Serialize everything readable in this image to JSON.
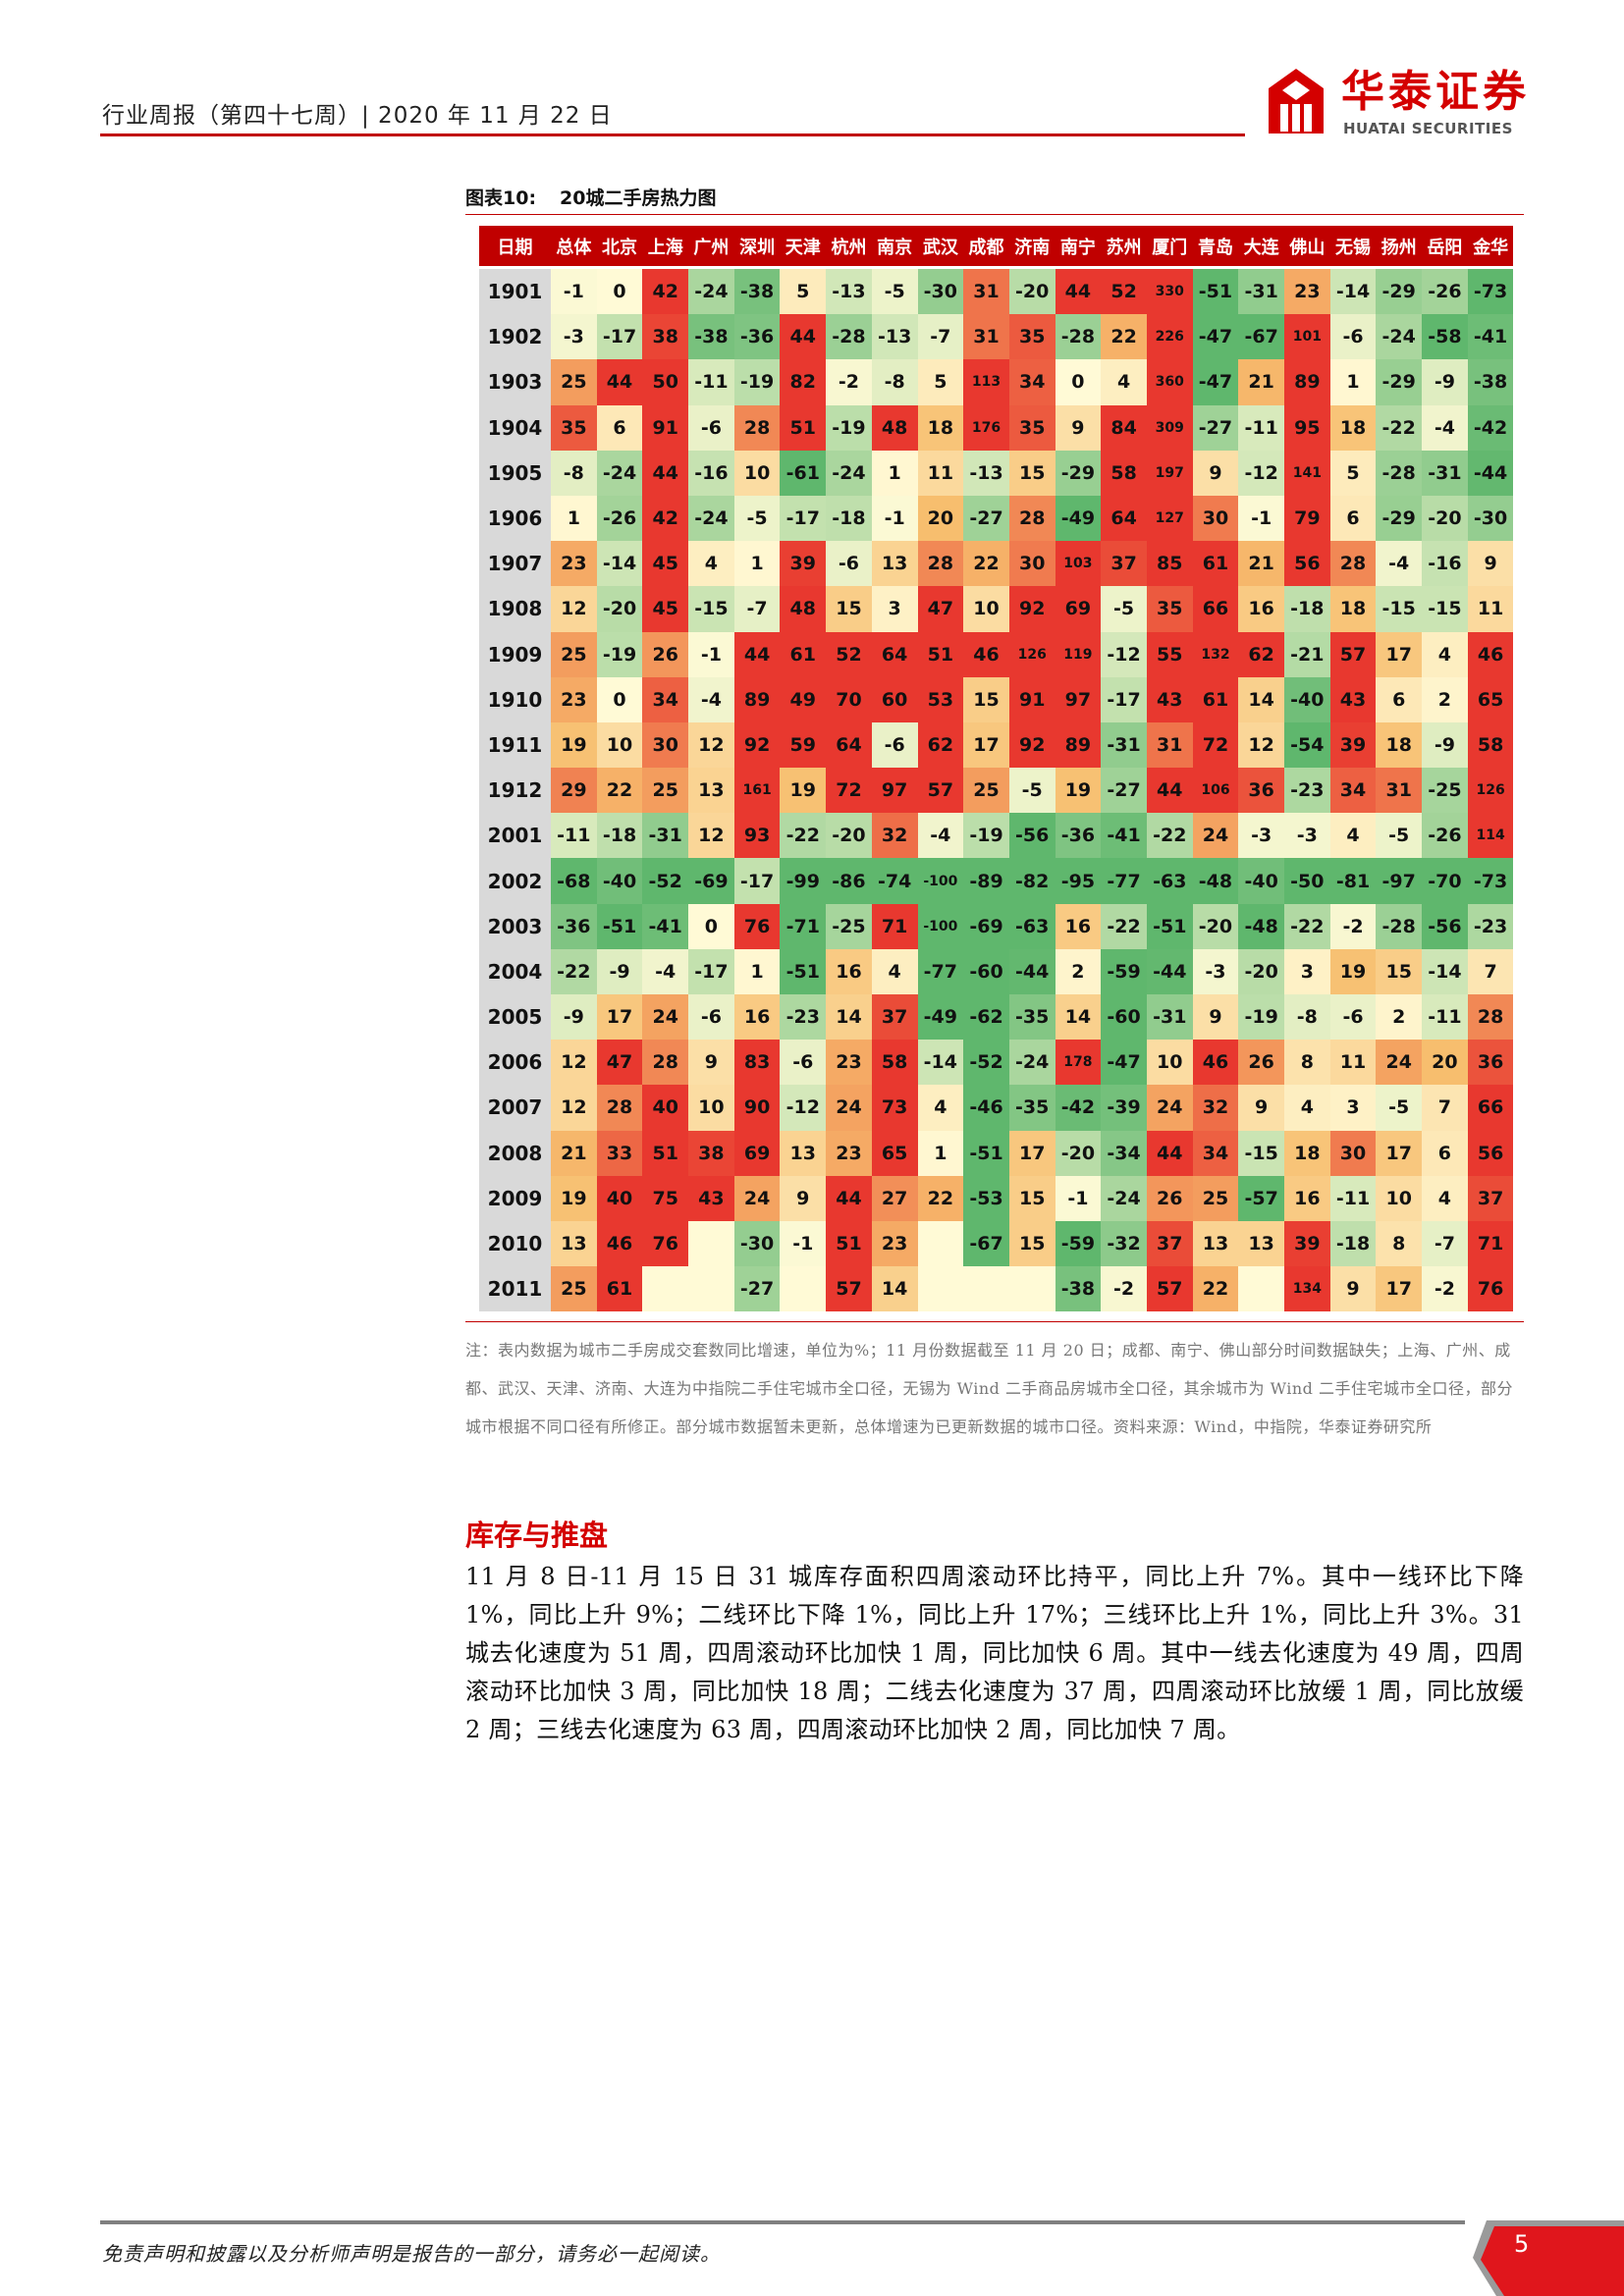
{
  "header": {
    "text": "行业周报（第四十七周）| 2020 年 11 月 22 日"
  },
  "logo": {
    "cn": "华泰证券",
    "en": "HUATAI SECURITIES"
  },
  "figure": {
    "label": "图表10:",
    "title": "20城二手房热力图"
  },
  "chart_data": {
    "type": "heatmap",
    "title": "20城二手房热力图",
    "header_first": "日期",
    "columns": [
      "总体",
      "北京",
      "上海",
      "广州",
      "深圳",
      "天津",
      "杭州",
      "南京",
      "武汉",
      "成都",
      "济南",
      "南宁",
      "苏州",
      "厦门",
      "青岛",
      "大连",
      "佛山",
      "无锡",
      "扬州",
      "岳阳",
      "金华"
    ],
    "rows": [
      "1901",
      "1902",
      "1903",
      "1904",
      "1905",
      "1906",
      "1907",
      "1908",
      "1909",
      "1910",
      "1911",
      "1912",
      "2001",
      "2002",
      "2003",
      "2004",
      "2005",
      "2006",
      "2007",
      "2008",
      "2009",
      "2010",
      "2011"
    ],
    "values": [
      [
        -1,
        0,
        42,
        -24,
        -38,
        5,
        -13,
        -5,
        -30,
        31,
        -20,
        44,
        52,
        330,
        -51,
        -31,
        23,
        -14,
        -29,
        -26,
        -73
      ],
      [
        -3,
        -17,
        38,
        -38,
        -36,
        44,
        -28,
        -13,
        -7,
        31,
        35,
        -28,
        22,
        226,
        -47,
        -67,
        101,
        -6,
        -24,
        -58,
        -41
      ],
      [
        25,
        44,
        50,
        -11,
        -19,
        82,
        -2,
        -8,
        5,
        113,
        34,
        0,
        4,
        360,
        -47,
        21,
        89,
        1,
        -29,
        -9,
        -38
      ],
      [
        35,
        6,
        91,
        -6,
        28,
        51,
        -19,
        48,
        18,
        176,
        35,
        9,
        84,
        309,
        -27,
        -11,
        95,
        18,
        -22,
        -4,
        -42
      ],
      [
        -8,
        -24,
        44,
        -16,
        10,
        -61,
        -24,
        1,
        11,
        -13,
        15,
        -29,
        58,
        197,
        9,
        -12,
        141,
        5,
        -28,
        -31,
        -44
      ],
      [
        1,
        -26,
        42,
        -24,
        -5,
        -17,
        -18,
        -1,
        20,
        -27,
        28,
        -49,
        64,
        127,
        30,
        -1,
        79,
        6,
        -29,
        -20,
        -30
      ],
      [
        23,
        -14,
        45,
        4,
        1,
        39,
        -6,
        13,
        28,
        22,
        30,
        103,
        37,
        85,
        61,
        21,
        56,
        28,
        -4,
        -16,
        9
      ],
      [
        12,
        -20,
        45,
        -15,
        -7,
        48,
        15,
        3,
        47,
        10,
        92,
        69,
        -5,
        35,
        66,
        16,
        -18,
        18,
        -15,
        -15,
        11
      ],
      [
        25,
        -19,
        26,
        -1,
        44,
        61,
        52,
        64,
        51,
        46,
        126,
        119,
        -12,
        55,
        132,
        62,
        -21,
        57,
        17,
        4,
        46
      ],
      [
        23,
        0,
        34,
        -4,
        89,
        49,
        70,
        60,
        53,
        15,
        91,
        97,
        -17,
        43,
        61,
        14,
        -40,
        43,
        6,
        2,
        65
      ],
      [
        19,
        10,
        30,
        12,
        92,
        59,
        64,
        -6,
        62,
        17,
        92,
        89,
        -31,
        31,
        72,
        12,
        -54,
        39,
        18,
        -9,
        58
      ],
      [
        29,
        22,
        25,
        13,
        161,
        19,
        72,
        97,
        57,
        25,
        -5,
        19,
        -27,
        44,
        106,
        36,
        -23,
        34,
        31,
        -25,
        126
      ],
      [
        -11,
        -18,
        -31,
        12,
        93,
        -22,
        -20,
        32,
        -4,
        -19,
        -56,
        -36,
        -41,
        -22,
        24,
        -3,
        -3,
        4,
        -5,
        -26,
        114
      ],
      [
        -68,
        -40,
        -52,
        -69,
        -17,
        -99,
        -86,
        -74,
        -100,
        -89,
        -82,
        -95,
        -77,
        -63,
        -48,
        -40,
        -50,
        -81,
        -97,
        -70,
        -73
      ],
      [
        -36,
        -51,
        -41,
        0,
        76,
        -71,
        -25,
        71,
        -100,
        -69,
        -63,
        16,
        -22,
        -51,
        -20,
        -48,
        -22,
        -2,
        -28,
        -56,
        -23
      ],
      [
        -22,
        -9,
        -4,
        -17,
        1,
        -51,
        16,
        4,
        -77,
        -60,
        -44,
        2,
        -59,
        -44,
        -3,
        -20,
        3,
        19,
        15,
        -14,
        7
      ],
      [
        -9,
        17,
        24,
        -6,
        16,
        -23,
        14,
        37,
        -49,
        -62,
        -35,
        14,
        -60,
        -31,
        9,
        -19,
        -8,
        -6,
        2,
        -11,
        28
      ],
      [
        12,
        47,
        28,
        9,
        83,
        -6,
        23,
        58,
        -14,
        -52,
        -24,
        178,
        -47,
        10,
        46,
        26,
        8,
        11,
        24,
        20,
        36
      ],
      [
        12,
        28,
        40,
        10,
        90,
        -12,
        24,
        73,
        4,
        -46,
        -35,
        -42,
        -39,
        24,
        32,
        9,
        4,
        3,
        -5,
        7,
        66
      ],
      [
        21,
        33,
        51,
        38,
        69,
        13,
        23,
        65,
        1,
        -51,
        17,
        -20,
        -34,
        44,
        34,
        -15,
        18,
        30,
        17,
        6,
        56
      ],
      [
        19,
        40,
        75,
        43,
        24,
        9,
        44,
        27,
        22,
        -53,
        15,
        -1,
        -24,
        26,
        25,
        -57,
        16,
        -11,
        10,
        4,
        37
      ],
      [
        13,
        46,
        76,
        null,
        -30,
        -1,
        51,
        23,
        null,
        -67,
        15,
        -59,
        -32,
        37,
        13,
        13,
        39,
        -18,
        8,
        -7,
        71
      ],
      [
        25,
        61,
        null,
        null,
        -27,
        null,
        57,
        14,
        null,
        null,
        null,
        -38,
        -2,
        57,
        22,
        null,
        134,
        9,
        17,
        -2,
        76
      ]
    ],
    "color_scale": {
      "low": "#5fb76d",
      "mid": "#fffad6",
      "high": "#e8382f"
    }
  },
  "note": "注：表内数据为城市二手房成交套数同比增速，单位为%；11 月份数据截至 11 月 20 日；成都、南宁、佛山部分时间数据缺失；上海、广州、成都、武汉、天津、济南、大连为中指院二手住宅城市全口径，无锡为 Wind 二手商品房城市全口径，其余城市为 Wind 二手住宅城市全口径，部分城市根据不同口径有所修正。部分城市数据暂未更新，总体增速为已更新数据的城市口径。资料来源：Wind，中指院，华泰证券研究所",
  "section": {
    "title": "库存与推盘",
    "body": "11 月 8 日-11 月 15 日 31 城库存面积四周滚动环比持平，同比上升 7%。其中一线环比下降 1%，同比上升 9%；二线环比下降 1%，同比上升 17%；三线环比上升 1%，同比上升 3%。31 城去化速度为 51 周，四周滚动环比加快 1 周，同比加快 6 周。其中一线去化速度为 49 周，四周滚动环比加快 3 周，同比加快 18 周；二线去化速度为 37 周，四周滚动环比放缓 1 周，同比放缓 2 周；三线去化速度为 63 周，四周滚动环比加快 2 周，同比加快 7 周。"
  },
  "footer": {
    "disclaimer": "免责声明和披露以及分析师声明是报告的一部分，请务必一起阅读。",
    "page": "5"
  }
}
